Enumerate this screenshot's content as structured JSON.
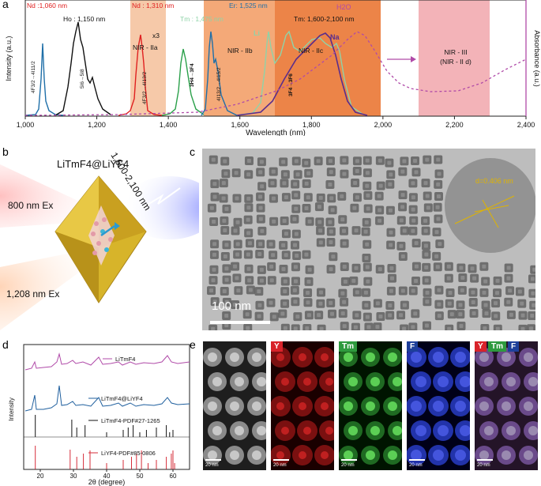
{
  "panel_a": {
    "label": "a",
    "chart_data": {
      "type": "line",
      "xlabel": "Wavelength (nm)",
      "ylabel_left": "Intensity (a.u.)",
      "ylabel_right": "Absorbance (a.u.)",
      "xlim": [
        1000,
        2400
      ],
      "x_ticks": [
        "1,000",
        "1,200",
        "1,400",
        "1,600",
        "1,800",
        "2,000",
        "2,200",
        "2,400"
      ],
      "regions": [
        {
          "name": "NIR - IIa",
          "range": [
            1300,
            1400
          ],
          "color": "#f6c9a9"
        },
        {
          "name": "NIR - IIb",
          "range": [
            1500,
            1700
          ],
          "color": "#f4a978"
        },
        {
          "name": "NIR - IIc",
          "range": [
            1700,
            2000
          ],
          "color": "#ec8448"
        },
        {
          "name": "NIR - III (NIR - II d)",
          "range": [
            2100,
            2300
          ],
          "color": "#f3b3b8"
        }
      ],
      "series": [
        {
          "name": "Nd",
          "color": "#1f6fa8",
          "peaks_nm": [
            1060
          ]
        },
        {
          "name": "Ho",
          "color": "#111111",
          "peaks_nm": [
            1150
          ]
        },
        {
          "name": "Nd",
          "color": "#e02020",
          "peaks_nm": [
            1310,
            1340
          ]
        },
        {
          "name": "Tm",
          "color": "#2aa04a",
          "peaks_nm": [
            1475
          ]
        },
        {
          "name": "Er",
          "color": "#1f6fa8",
          "peaks_nm": [
            1525,
            1550
          ]
        },
        {
          "name": "Li",
          "color": "#8fd3a8",
          "peaks_nm": [
            1680,
            1740,
            1820,
            1880
          ]
        },
        {
          "name": "Na",
          "color": "#5a2d8c",
          "peaks_nm": [
            1820
          ]
        },
        {
          "name": "H2O",
          "color": "#b04aa8",
          "peaks_nm": [
            1930
          ]
        }
      ]
    },
    "legend_nd1": "Nd :1,060 nm",
    "legend_ho": "Ho : 1,150 nm",
    "legend_nd2": "Nd : 1,310 nm",
    "legend_tm1": "Tm : 1,475 nm",
    "legend_er": "Er: 1,525 nm",
    "legend_tm2": "Tm: 1,600-2,100 nm",
    "legend_h2o": "H2O",
    "x3": "x3",
    "nir2a": "NIR - IIa",
    "nir2b": "NIR - IIb",
    "nir2c": "NIR - IIc",
    "nir3": "NIR - III",
    "nir2d": "(NIR - II d)",
    "li": "Li",
    "na": "Na",
    "tr_nd1": "4F3/2→4I11/2",
    "tr_ho": "5I6→5I8",
    "tr_nd2": "4F3/2→4I13/2",
    "tr_tm1": "3H4→3F4",
    "tr_er": "4I13/2→4I15/2",
    "tr_tm2": "3F4→3F6"
  },
  "panel_b": {
    "label": "b",
    "title": "LiTmF4@LiYF4",
    "ex1": "800 nm Ex",
    "ex2": "1,208 nm Ex",
    "emission": "1,600-2,100 nm"
  },
  "panel_c": {
    "label": "c",
    "scale": "100 nm",
    "lattice": "d=0.406 nm"
  },
  "panel_d": {
    "label": "d",
    "chart_data": {
      "type": "line",
      "xlabel": "2θ (degree)",
      "ylabel": "Intensity",
      "xlim": [
        15,
        65
      ],
      "x_ticks": [
        "20",
        "30",
        "40",
        "50",
        "60"
      ],
      "series": [
        {
          "name": "LiTmF4",
          "color": "#b04aa8"
        },
        {
          "name": "LiTmF4@LiYF4",
          "color": "#1f5f9e"
        },
        {
          "name": "LiTmF4-PDF#27-1265",
          "color": "#111111",
          "peaks_2theta": [
            18.5,
            29.5,
            31,
            33.5,
            40,
            45,
            46.5,
            48,
            50,
            52,
            55,
            58,
            59,
            60
          ]
        },
        {
          "name": "LiYF4-PDF#85-0806",
          "color": "#d62d3a",
          "peaks_2theta": [
            18.5,
            29,
            31,
            33,
            35,
            40,
            45,
            47.5,
            49,
            50.5,
            52.5,
            55,
            58,
            59.5,
            60,
            60.5
          ]
        }
      ]
    }
  },
  "panel_e": {
    "label": "e",
    "scales": [
      "20 nm",
      "20 nm",
      "20 nm",
      "20 nm",
      "20 nm"
    ],
    "tag_y": "Y",
    "tag_tm": "Tm",
    "tag_f": "F",
    "colors": {
      "Y": "#d8232a",
      "Tm": "#2e9a3e",
      "F": "#1d3f9a"
    }
  }
}
